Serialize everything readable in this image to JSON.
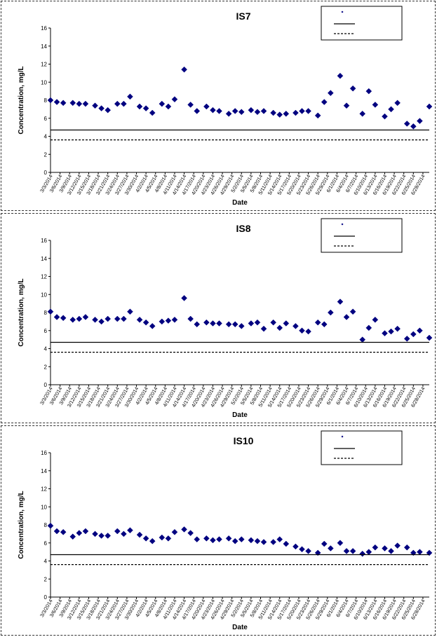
{
  "chart_data": [
    {
      "type": "scatter",
      "title": "IS7",
      "xlabel": "Date",
      "ylabel": "Concentration, mg/L",
      "ylim": [
        0,
        16
      ],
      "yticks": [
        0,
        2,
        4,
        6,
        8,
        10,
        12,
        14,
        16
      ],
      "x_tick_labels": [
        "3/3/2014",
        "3/6/2014",
        "3/9/2014",
        "3/12/2014",
        "3/15/2014",
        "3/18/2014",
        "3/21/2014",
        "3/24/2014",
        "3/27/2014",
        "3/30/2014",
        "4/2/2014",
        "4/5/2014",
        "4/8/2014",
        "4/11/2014",
        "4/14/2014",
        "4/17/2014",
        "4/20/2014",
        "4/23/2014",
        "4/26/2014",
        "4/29/2014",
        "5/2/2014",
        "5/5/2014",
        "5/8/2014",
        "5/11/2014",
        "5/14/2014",
        "5/17/2014",
        "5/20/2014",
        "5/23/2014",
        "5/26/2014",
        "5/29/2014",
        "6/1/2014",
        "6/4/2014",
        "6/7/2014",
        "6/10/2014",
        "6/13/2014",
        "6/16/2014",
        "6/19/2014",
        "6/22/2014",
        "6/25/2014",
        "6/28/2014"
      ],
      "xlim": [
        "3/3/2014",
        "6/30/2014"
      ],
      "legend_position": "top-right",
      "series": [
        {
          "marker": "diamond",
          "color": "#000080",
          "points": [
            [
              "3/3/2014",
              8.0
            ],
            [
              "3/5/2014",
              7.8
            ],
            [
              "3/7/2014",
              7.7
            ],
            [
              "3/10/2014",
              7.7
            ],
            [
              "3/12/2014",
              7.6
            ],
            [
              "3/14/2014",
              7.6
            ],
            [
              "3/17/2014",
              7.4
            ],
            [
              "3/19/2014",
              7.1
            ],
            [
              "3/21/2014",
              6.9
            ],
            [
              "3/24/2014",
              7.6
            ],
            [
              "3/26/2014",
              7.6
            ],
            [
              "3/28/2014",
              8.4
            ],
            [
              "3/31/2014",
              7.3
            ],
            [
              "4/2/2014",
              7.1
            ],
            [
              "4/4/2014",
              6.6
            ],
            [
              "4/7/2014",
              7.6
            ],
            [
              "4/9/2014",
              7.3
            ],
            [
              "4/11/2014",
              8.1
            ],
            [
              "4/14/2014",
              11.4
            ],
            [
              "4/16/2014",
              7.5
            ],
            [
              "4/18/2014",
              6.8
            ],
            [
              "4/21/2014",
              7.3
            ],
            [
              "4/23/2014",
              6.9
            ],
            [
              "4/25/2014",
              6.8
            ],
            [
              "4/28/2014",
              6.5
            ],
            [
              "4/30/2014",
              6.8
            ],
            [
              "5/2/2014",
              6.7
            ],
            [
              "5/5/2014",
              6.9
            ],
            [
              "5/7/2014",
              6.7
            ],
            [
              "5/9/2014",
              6.8
            ],
            [
              "5/12/2014",
              6.6
            ],
            [
              "5/14/2014",
              6.4
            ],
            [
              "5/16/2014",
              6.5
            ],
            [
              "5/19/2014",
              6.6
            ],
            [
              "5/21/2014",
              6.8
            ],
            [
              "5/23/2014",
              6.8
            ],
            [
              "5/26/2014",
              6.3
            ],
            [
              "5/28/2014",
              7.8
            ],
            [
              "5/30/2014",
              8.8
            ],
            [
              "6/2/2014",
              10.7
            ],
            [
              "6/4/2014",
              7.4
            ],
            [
              "6/6/2014",
              9.3
            ],
            [
              "6/9/2014",
              6.5
            ],
            [
              "6/11/2014",
              9.0
            ],
            [
              "6/13/2014",
              7.5
            ],
            [
              "6/16/2014",
              6.2
            ],
            [
              "6/18/2014",
              7.0
            ],
            [
              "6/20/2014",
              7.7
            ],
            [
              "6/23/2014",
              5.4
            ],
            [
              "6/25/2014",
              5.1
            ],
            [
              "6/27/2014",
              5.7
            ],
            [
              "6/30/2014",
              7.3
            ]
          ]
        },
        {
          "line": "solid",
          "color": "#000000",
          "value": 4.7
        },
        {
          "line": "dashed",
          "color": "#000000",
          "value": 3.6
        }
      ]
    },
    {
      "type": "scatter",
      "title": "IS8",
      "xlabel": "Date",
      "ylabel": "Concentration, mg/L",
      "ylim": [
        0,
        16
      ],
      "yticks": [
        0,
        2,
        4,
        6,
        8,
        10,
        12,
        14,
        16
      ],
      "x_tick_labels": [
        "3/3/2014",
        "3/6/2014",
        "3/9/2014",
        "3/12/2014",
        "3/15/2014",
        "3/18/2014",
        "3/21/2014",
        "3/24/2014",
        "3/27/2014",
        "3/30/2014",
        "4/2/2014",
        "4/5/2014",
        "4/8/2014",
        "4/11/2014",
        "4/14/2014",
        "4/17/2014",
        "4/20/2014",
        "4/23/2014",
        "4/26/2014",
        "4/29/2014",
        "5/2/2014",
        "5/5/2014",
        "5/8/2014",
        "5/11/2014",
        "5/14/2014",
        "5/17/2014",
        "5/20/2014",
        "5/23/2014",
        "5/26/2014",
        "5/29/2014",
        "6/1/2014",
        "6/4/2014",
        "6/7/2014",
        "6/10/2014",
        "6/13/2014",
        "6/16/2014",
        "6/19/2014",
        "6/22/2014",
        "6/25/2014",
        "6/28/2014"
      ],
      "xlim": [
        "3/3/2014",
        "6/30/2014"
      ],
      "legend_position": "top-right",
      "series": [
        {
          "marker": "diamond",
          "color": "#000080",
          "points": [
            [
              "3/3/2014",
              8.1
            ],
            [
              "3/5/2014",
              7.5
            ],
            [
              "3/7/2014",
              7.4
            ],
            [
              "3/10/2014",
              7.2
            ],
            [
              "3/12/2014",
              7.3
            ],
            [
              "3/14/2014",
              7.5
            ],
            [
              "3/17/2014",
              7.2
            ],
            [
              "3/19/2014",
              7.0
            ],
            [
              "3/21/2014",
              7.3
            ],
            [
              "3/24/2014",
              7.3
            ],
            [
              "3/26/2014",
              7.3
            ],
            [
              "3/28/2014",
              8.1
            ],
            [
              "3/31/2014",
              7.2
            ],
            [
              "4/2/2014",
              6.9
            ],
            [
              "4/4/2014",
              6.5
            ],
            [
              "4/7/2014",
              7.0
            ],
            [
              "4/9/2014",
              7.1
            ],
            [
              "4/11/2014",
              7.2
            ],
            [
              "4/14/2014",
              9.6
            ],
            [
              "4/16/2014",
              7.3
            ],
            [
              "4/18/2014",
              6.7
            ],
            [
              "4/21/2014",
              6.9
            ],
            [
              "4/23/2014",
              6.8
            ],
            [
              "4/25/2014",
              6.8
            ],
            [
              "4/28/2014",
              6.7
            ],
            [
              "4/30/2014",
              6.7
            ],
            [
              "5/2/2014",
              6.5
            ],
            [
              "5/5/2014",
              6.8
            ],
            [
              "5/7/2014",
              6.9
            ],
            [
              "5/9/2014",
              6.2
            ],
            [
              "5/12/2014",
              6.9
            ],
            [
              "5/14/2014",
              6.3
            ],
            [
              "5/16/2014",
              6.8
            ],
            [
              "5/19/2014",
              6.5
            ],
            [
              "5/21/2014",
              6.0
            ],
            [
              "5/23/2014",
              5.9
            ],
            [
              "5/26/2014",
              6.9
            ],
            [
              "5/28/2014",
              6.7
            ],
            [
              "5/30/2014",
              8.0
            ],
            [
              "6/2/2014",
              9.2
            ],
            [
              "6/4/2014",
              7.5
            ],
            [
              "6/6/2014",
              8.1
            ],
            [
              "6/9/2014",
              5.0
            ],
            [
              "6/11/2014",
              6.3
            ],
            [
              "6/13/2014",
              7.2
            ],
            [
              "6/16/2014",
              5.7
            ],
            [
              "6/18/2014",
              5.9
            ],
            [
              "6/20/2014",
              6.2
            ],
            [
              "6/23/2014",
              5.1
            ],
            [
              "6/25/2014",
              5.6
            ],
            [
              "6/27/2014",
              6.0
            ],
            [
              "6/30/2014",
              5.2
            ]
          ]
        },
        {
          "line": "solid",
          "color": "#000000",
          "value": 4.7
        },
        {
          "line": "dashed",
          "color": "#000000",
          "value": 3.6
        }
      ]
    },
    {
      "type": "scatter",
      "title": "IS10",
      "xlabel": "Date",
      "ylabel": "Concentration, mg/L",
      "ylim": [
        0,
        16
      ],
      "yticks": [
        0,
        2,
        4,
        6,
        8,
        10,
        12,
        14,
        16
      ],
      "x_tick_labels": [
        "3/3/2014",
        "3/6/2014",
        "3/9/2014",
        "3/12/2014",
        "3/15/2014",
        "3/18/2014",
        "3/21/2014",
        "3/24/2014",
        "3/27/2014",
        "3/30/2014",
        "4/2/2014",
        "4/5/2014",
        "4/8/2014",
        "4/11/2014",
        "4/14/2014",
        "4/17/2014",
        "4/20/2014",
        "4/23/2014",
        "4/26/2014",
        "4/29/2014",
        "5/2/2014",
        "5/5/2014",
        "5/8/2014",
        "5/11/2014",
        "5/14/2014",
        "5/17/2014",
        "5/20/2014",
        "5/23/2014",
        "5/26/2014",
        "5/29/2014",
        "6/1/2014",
        "6/4/2014",
        "6/7/2014",
        "6/10/2014",
        "6/13/2014",
        "6/16/2014",
        "6/19/2014",
        "6/22/2014",
        "6/25/2014",
        "6/28/2014"
      ],
      "xlim": [
        "3/3/2014",
        "6/30/2014"
      ],
      "legend_position": "top-right",
      "series": [
        {
          "marker": "diamond",
          "color": "#000080",
          "points": [
            [
              "3/3/2014",
              7.9
            ],
            [
              "3/5/2014",
              7.3
            ],
            [
              "3/7/2014",
              7.2
            ],
            [
              "3/10/2014",
              6.7
            ],
            [
              "3/12/2014",
              7.1
            ],
            [
              "3/14/2014",
              7.3
            ],
            [
              "3/17/2014",
              7.0
            ],
            [
              "3/19/2014",
              6.8
            ],
            [
              "3/21/2014",
              6.8
            ],
            [
              "3/24/2014",
              7.3
            ],
            [
              "3/26/2014",
              7.0
            ],
            [
              "3/28/2014",
              7.4
            ],
            [
              "3/31/2014",
              6.9
            ],
            [
              "4/2/2014",
              6.5
            ],
            [
              "4/4/2014",
              6.2
            ],
            [
              "4/7/2014",
              6.6
            ],
            [
              "4/9/2014",
              6.5
            ],
            [
              "4/11/2014",
              7.2
            ],
            [
              "4/14/2014",
              7.5
            ],
            [
              "4/16/2014",
              7.1
            ],
            [
              "4/18/2014",
              6.4
            ],
            [
              "4/21/2014",
              6.5
            ],
            [
              "4/23/2014",
              6.3
            ],
            [
              "4/25/2014",
              6.4
            ],
            [
              "4/28/2014",
              6.5
            ],
            [
              "4/30/2014",
              6.2
            ],
            [
              "5/2/2014",
              6.4
            ],
            [
              "5/5/2014",
              6.3
            ],
            [
              "5/7/2014",
              6.2
            ],
            [
              "5/9/2014",
              6.1
            ],
            [
              "5/12/2014",
              6.1
            ],
            [
              "5/14/2014",
              6.4
            ],
            [
              "5/16/2014",
              5.9
            ],
            [
              "5/19/2014",
              5.6
            ],
            [
              "5/21/2014",
              5.3
            ],
            [
              "5/23/2014",
              5.1
            ],
            [
              "5/26/2014",
              4.9
            ],
            [
              "5/28/2014",
              5.9
            ],
            [
              "5/30/2014",
              5.4
            ],
            [
              "6/2/2014",
              6.0
            ],
            [
              "6/4/2014",
              5.1
            ],
            [
              "6/6/2014",
              5.1
            ],
            [
              "6/9/2014",
              4.8
            ],
            [
              "6/11/2014",
              5.0
            ],
            [
              "6/13/2014",
              5.5
            ],
            [
              "6/16/2014",
              5.4
            ],
            [
              "6/18/2014",
              5.1
            ],
            [
              "6/20/2014",
              5.7
            ],
            [
              "6/23/2014",
              5.5
            ],
            [
              "6/25/2014",
              4.9
            ],
            [
              "6/27/2014",
              5.0
            ],
            [
              "6/30/2014",
              4.9
            ]
          ]
        },
        {
          "line": "solid",
          "color": "#000000",
          "value": 4.7
        },
        {
          "line": "dashed",
          "color": "#000000",
          "value": 3.6
        }
      ]
    }
  ]
}
